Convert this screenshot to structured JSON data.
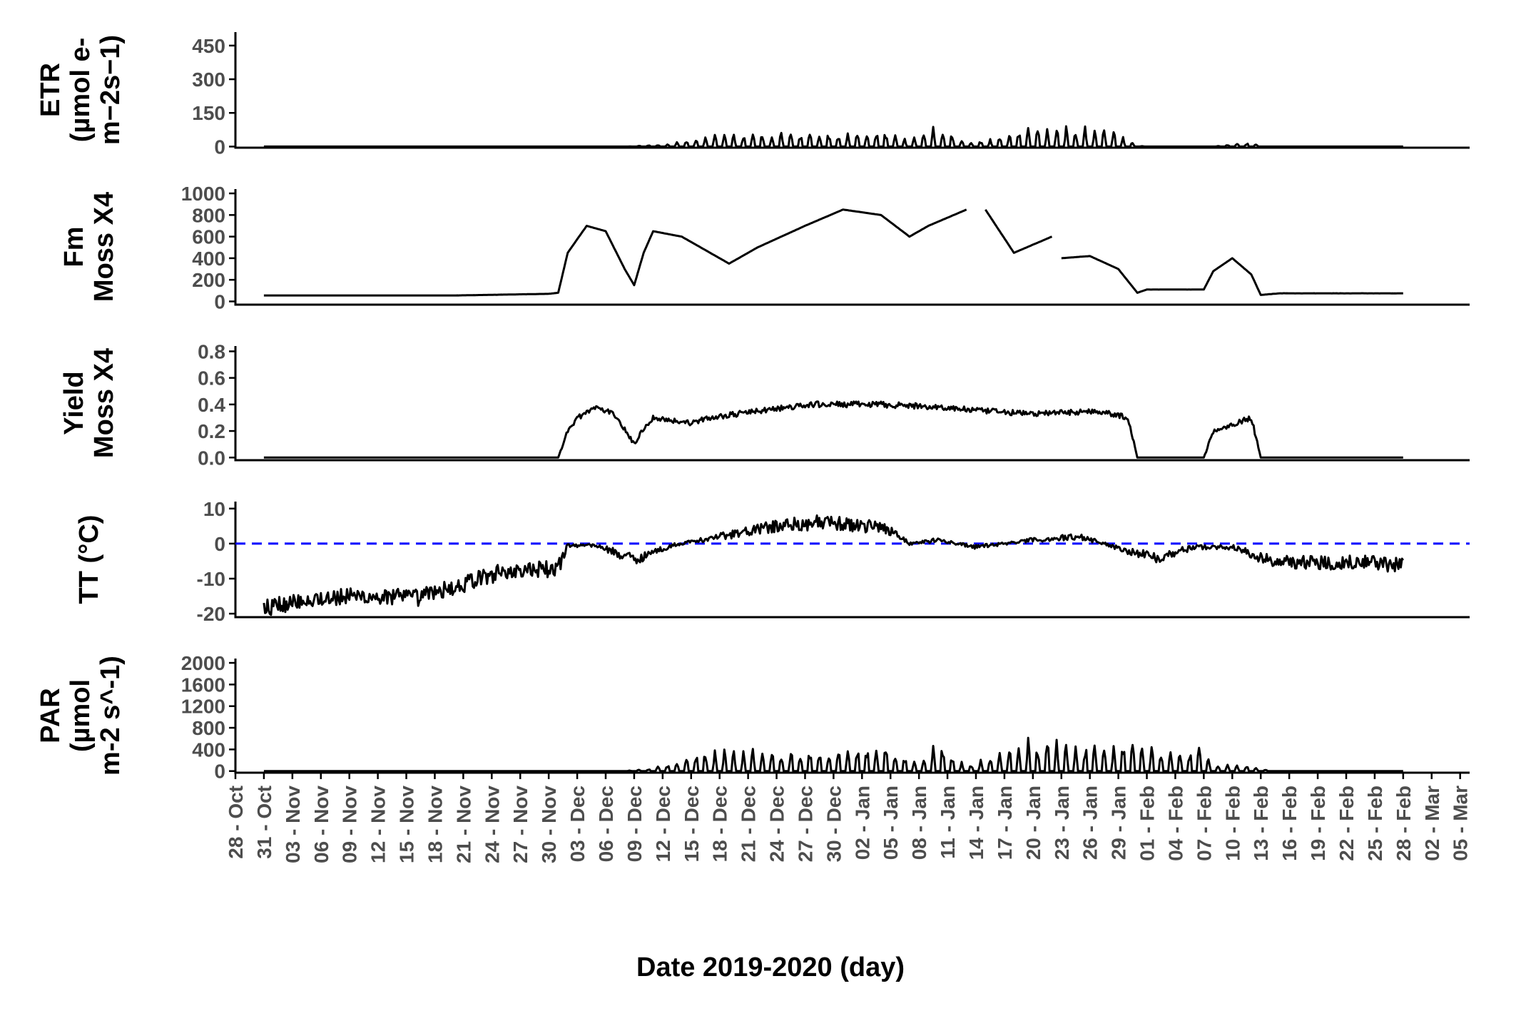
{
  "chart_data": {
    "type": "line",
    "layout": "stacked-panels",
    "xlabel": "Date 2019-2020 (day)",
    "x_ticks": [
      "28 - Oct",
      "31 - Oct",
      "03 - Nov",
      "06 - Nov",
      "09 - Nov",
      "12 - Nov",
      "15 - Nov",
      "18 - Nov",
      "21 - Nov",
      "24 - Nov",
      "27 - Nov",
      "30 - Nov",
      "03 - Dec",
      "06 - Dec",
      "09 - Dec",
      "12 - Dec",
      "15 - Dec",
      "18 - Dec",
      "21 - Dec",
      "24 - Dec",
      "27 - Dec",
      "30 - Dec",
      "02 - Jan",
      "05 - Jan",
      "08 - Jan",
      "11 - Jan",
      "14 - Jan",
      "17 - Jan",
      "20 - Jan",
      "23 - Jan",
      "26 - Jan",
      "29 - Jan",
      "01 - Feb",
      "04 - Feb",
      "07 - Feb",
      "10 - Feb",
      "13 - Feb",
      "16 - Feb",
      "19 - Feb",
      "22 - Feb",
      "25 - Feb",
      "28 - Feb",
      "02 - Mar",
      "05 - Mar"
    ],
    "x_range": [
      "2019-10-28",
      "2020-03-06"
    ],
    "grid": false,
    "legend": "none",
    "panels": [
      {
        "id": "etr",
        "ylabel_lines": [
          "ETR",
          "(µmol e-",
          "m−2s−1)"
        ],
        "ylim": [
          -5,
          510
        ],
        "yticks": [
          0,
          150,
          300,
          450
        ],
        "tick_labels": [
          "0",
          "150",
          "300",
          "450"
        ],
        "series": [
          {
            "kind": "envelope",
            "baseline": 0,
            "keypoints": [
              [
                "2019-10-31",
                0
              ],
              [
                "2019-12-08",
                0
              ],
              [
                "2019-12-12",
                10
              ],
              [
                "2019-12-15",
                30
              ],
              [
                "2019-12-17",
                55
              ],
              [
                "2019-12-25",
                65
              ],
              [
                "2020-01-04",
                80
              ],
              [
                "2020-01-07",
                30
              ],
              [
                "2020-01-10",
                110
              ],
              [
                "2020-01-13",
                20
              ],
              [
                "2020-01-16",
                40
              ],
              [
                "2020-01-20",
                95
              ],
              [
                "2020-01-28",
                90
              ],
              [
                "2020-01-31",
                5
              ],
              [
                "2020-02-01",
                0
              ],
              [
                "2020-02-08",
                0
              ],
              [
                "2020-02-10",
                12
              ],
              [
                "2020-02-12",
                20
              ],
              [
                "2020-02-13",
                0
              ],
              [
                "2020-02-28",
                0
              ]
            ]
          }
        ]
      },
      {
        "id": "fm",
        "ylabel_lines": [
          "Fm",
          "Moss X4"
        ],
        "ylim": [
          -30,
          1040
        ],
        "yticks": [
          0,
          200,
          400,
          600,
          800,
          1000
        ],
        "tick_labels": [
          "0",
          "200",
          "400",
          "600",
          "800",
          "1000"
        ],
        "series": [
          {
            "kind": "noisy",
            "keypoints": [
              [
                "2019-10-31",
                55
              ],
              [
                "2019-11-20",
                55
              ],
              [
                "2019-11-30",
                70
              ],
              [
                "2019-12-01",
                80
              ],
              [
                "2019-12-02",
                450
              ],
              [
                "2019-12-04",
                700
              ],
              [
                "2019-12-06",
                650
              ],
              [
                "2019-12-08",
                300
              ],
              [
                "2019-12-09",
                150
              ],
              [
                "2019-12-10",
                450
              ],
              [
                "2019-12-11",
                650
              ],
              [
                "2019-12-14",
                600
              ],
              [
                "2019-12-17",
                450
              ],
              [
                "2019-12-19",
                350
              ],
              [
                "2019-12-22",
                500
              ],
              [
                "2019-12-27",
                700
              ],
              [
                "2019-12-31",
                850
              ],
              [
                "2020-01-04",
                800
              ],
              [
                "2020-01-07",
                600
              ],
              [
                "2020-01-09",
                700
              ],
              [
                "2020-01-13",
                850
              ]
            ],
            "noise": [
              0.18,
              0.45
            ],
            "gaps": [
              [
                "2020-01-13",
                "2020-01-15"
              ],
              [
                "2020-01-22",
                "2020-01-23"
              ]
            ],
            "segments": [
              [
                [
                  "2020-01-15",
                  850
                ],
                [
                  "2020-01-18",
                  450
                ],
                [
                  "2020-01-22",
                  600
                ]
              ],
              [
                [
                  "2020-01-23",
                  400
                ],
                [
                  "2020-01-26",
                  420
                ],
                [
                  "2020-01-29",
                  300
                ],
                [
                  "2020-01-31",
                  80
                ],
                [
                  "2020-02-01",
                  110
                ],
                [
                  "2020-02-07",
                  110
                ],
                [
                  "2020-02-08",
                  280
                ],
                [
                  "2020-02-10",
                  400
                ],
                [
                  "2020-02-12",
                  250
                ],
                [
                  "2020-02-13",
                  60
                ],
                [
                  "2020-02-15",
                  75
                ],
                [
                  "2020-02-28",
                  75
                ]
              ]
            ]
          }
        ]
      },
      {
        "id": "yield",
        "ylabel_lines": [
          "Yield",
          "Moss X4"
        ],
        "ylim": [
          -0.02,
          0.84
        ],
        "yticks": [
          0.0,
          0.2,
          0.4,
          0.6,
          0.8
        ],
        "tick_labels": [
          "0.0",
          "0.2",
          "0.4",
          "0.6",
          "0.8"
        ],
        "series": [
          {
            "kind": "noisy",
            "keypoints": [
              [
                "2019-10-31",
                0
              ],
              [
                "2019-12-01",
                0
              ],
              [
                "2019-12-02",
                0.2
              ],
              [
                "2019-12-03",
                0.3
              ],
              [
                "2019-12-05",
                0.38
              ],
              [
                "2019-12-07",
                0.32
              ],
              [
                "2019-12-09",
                0.1
              ],
              [
                "2019-12-10",
                0.22
              ],
              [
                "2019-12-11",
                0.3
              ],
              [
                "2019-12-15",
                0.26
              ],
              [
                "2019-12-17",
                0.3
              ],
              [
                "2019-12-22",
                0.35
              ],
              [
                "2019-12-28",
                0.4
              ],
              [
                "2020-01-04",
                0.4
              ],
              [
                "2020-01-10",
                0.38
              ],
              [
                "2020-01-15",
                0.35
              ],
              [
                "2020-01-20",
                0.33
              ],
              [
                "2020-01-27",
                0.35
              ],
              [
                "2020-01-30",
                0.3
              ],
              [
                "2020-01-31",
                0.0
              ],
              [
                "2020-02-07",
                0.0
              ],
              [
                "2020-02-08",
                0.2
              ],
              [
                "2020-02-12",
                0.3
              ],
              [
                "2020-02-13",
                0.0
              ],
              [
                "2020-02-28",
                0.0
              ]
            ],
            "noise": [
              0.025,
              0.08
            ]
          }
        ]
      },
      {
        "id": "tt",
        "ylabel_lines": [
          "TT (°C)"
        ],
        "ylim": [
          -21,
          12
        ],
        "yticks": [
          -20,
          -10,
          0,
          10
        ],
        "tick_labels": [
          "-20",
          "-10",
          "0",
          "10"
        ],
        "reference_line": {
          "y": 0,
          "style": "dashed",
          "color": "#0000ff"
        },
        "series": [
          {
            "kind": "noisy",
            "keypoints": [
              [
                "2019-10-31",
                -18.5
              ],
              [
                "2019-11-04",
                -16
              ],
              [
                "2019-11-10",
                -15
              ],
              [
                "2019-11-16",
                -15.5
              ],
              [
                "2019-11-20",
                -12.5
              ],
              [
                "2019-11-25",
                -8
              ],
              [
                "2019-11-30",
                -7.5
              ],
              [
                "2019-12-01",
                -7
              ],
              [
                "2019-12-02",
                -0.5
              ],
              [
                "2019-12-05",
                -0.5
              ],
              [
                "2019-12-09",
                -4.5
              ],
              [
                "2019-12-13",
                -0.5
              ],
              [
                "2019-12-18",
                2
              ],
              [
                "2019-12-24",
                5
              ],
              [
                "2019-12-28",
                6
              ],
              [
                "2020-01-03",
                5
              ],
              [
                "2020-01-05",
                4
              ],
              [
                "2020-01-07",
                0
              ],
              [
                "2020-01-10",
                1
              ],
              [
                "2020-01-14",
                -1
              ],
              [
                "2020-01-20",
                1
              ],
              [
                "2020-01-25",
                2
              ],
              [
                "2020-01-30",
                -2
              ],
              [
                "2020-02-02",
                -4
              ],
              [
                "2020-02-06",
                -1
              ],
              [
                "2020-02-10",
                -1
              ],
              [
                "2020-02-12",
                -3
              ],
              [
                "2020-02-14",
                -5
              ],
              [
                "2020-02-20",
                -5.5
              ],
              [
                "2020-02-24",
                -5
              ],
              [
                "2020-02-28",
                -6.5
              ]
            ],
            "noise": [
              0.3,
              2.5
            ]
          }
        ]
      },
      {
        "id": "par",
        "ylabel_lines": [
          "PAR",
          "(µmol",
          "m-2 s^-1)"
        ],
        "ylim": [
          -30,
          2080
        ],
        "yticks": [
          0,
          400,
          800,
          1200,
          1600,
          2000
        ],
        "tick_labels": [
          "0",
          "400",
          "800",
          "1200",
          "1600",
          "2000"
        ],
        "series": [
          {
            "kind": "envelope",
            "baseline": 0,
            "keypoints": [
              [
                "2019-10-31",
                0
              ],
              [
                "2019-12-08",
                0
              ],
              [
                "2019-12-11",
                60
              ],
              [
                "2019-12-14",
                200
              ],
              [
                "2019-12-16",
                450
              ],
              [
                "2019-12-25",
                430
              ],
              [
                "2020-01-05",
                500
              ],
              [
                "2020-01-08",
                200
              ],
              [
                "2020-01-10",
                600
              ],
              [
                "2020-01-13",
                100
              ],
              [
                "2020-01-16",
                350
              ],
              [
                "2020-01-18",
                650
              ],
              [
                "2020-01-27",
                550
              ],
              [
                "2020-02-01",
                500
              ],
              [
                "2020-02-07",
                450
              ],
              [
                "2020-02-08",
                100
              ],
              [
                "2020-02-11",
                150
              ],
              [
                "2020-02-13",
                60
              ],
              [
                "2020-02-14",
                0
              ],
              [
                "2020-02-28",
                0
              ]
            ]
          }
        ]
      }
    ]
  }
}
